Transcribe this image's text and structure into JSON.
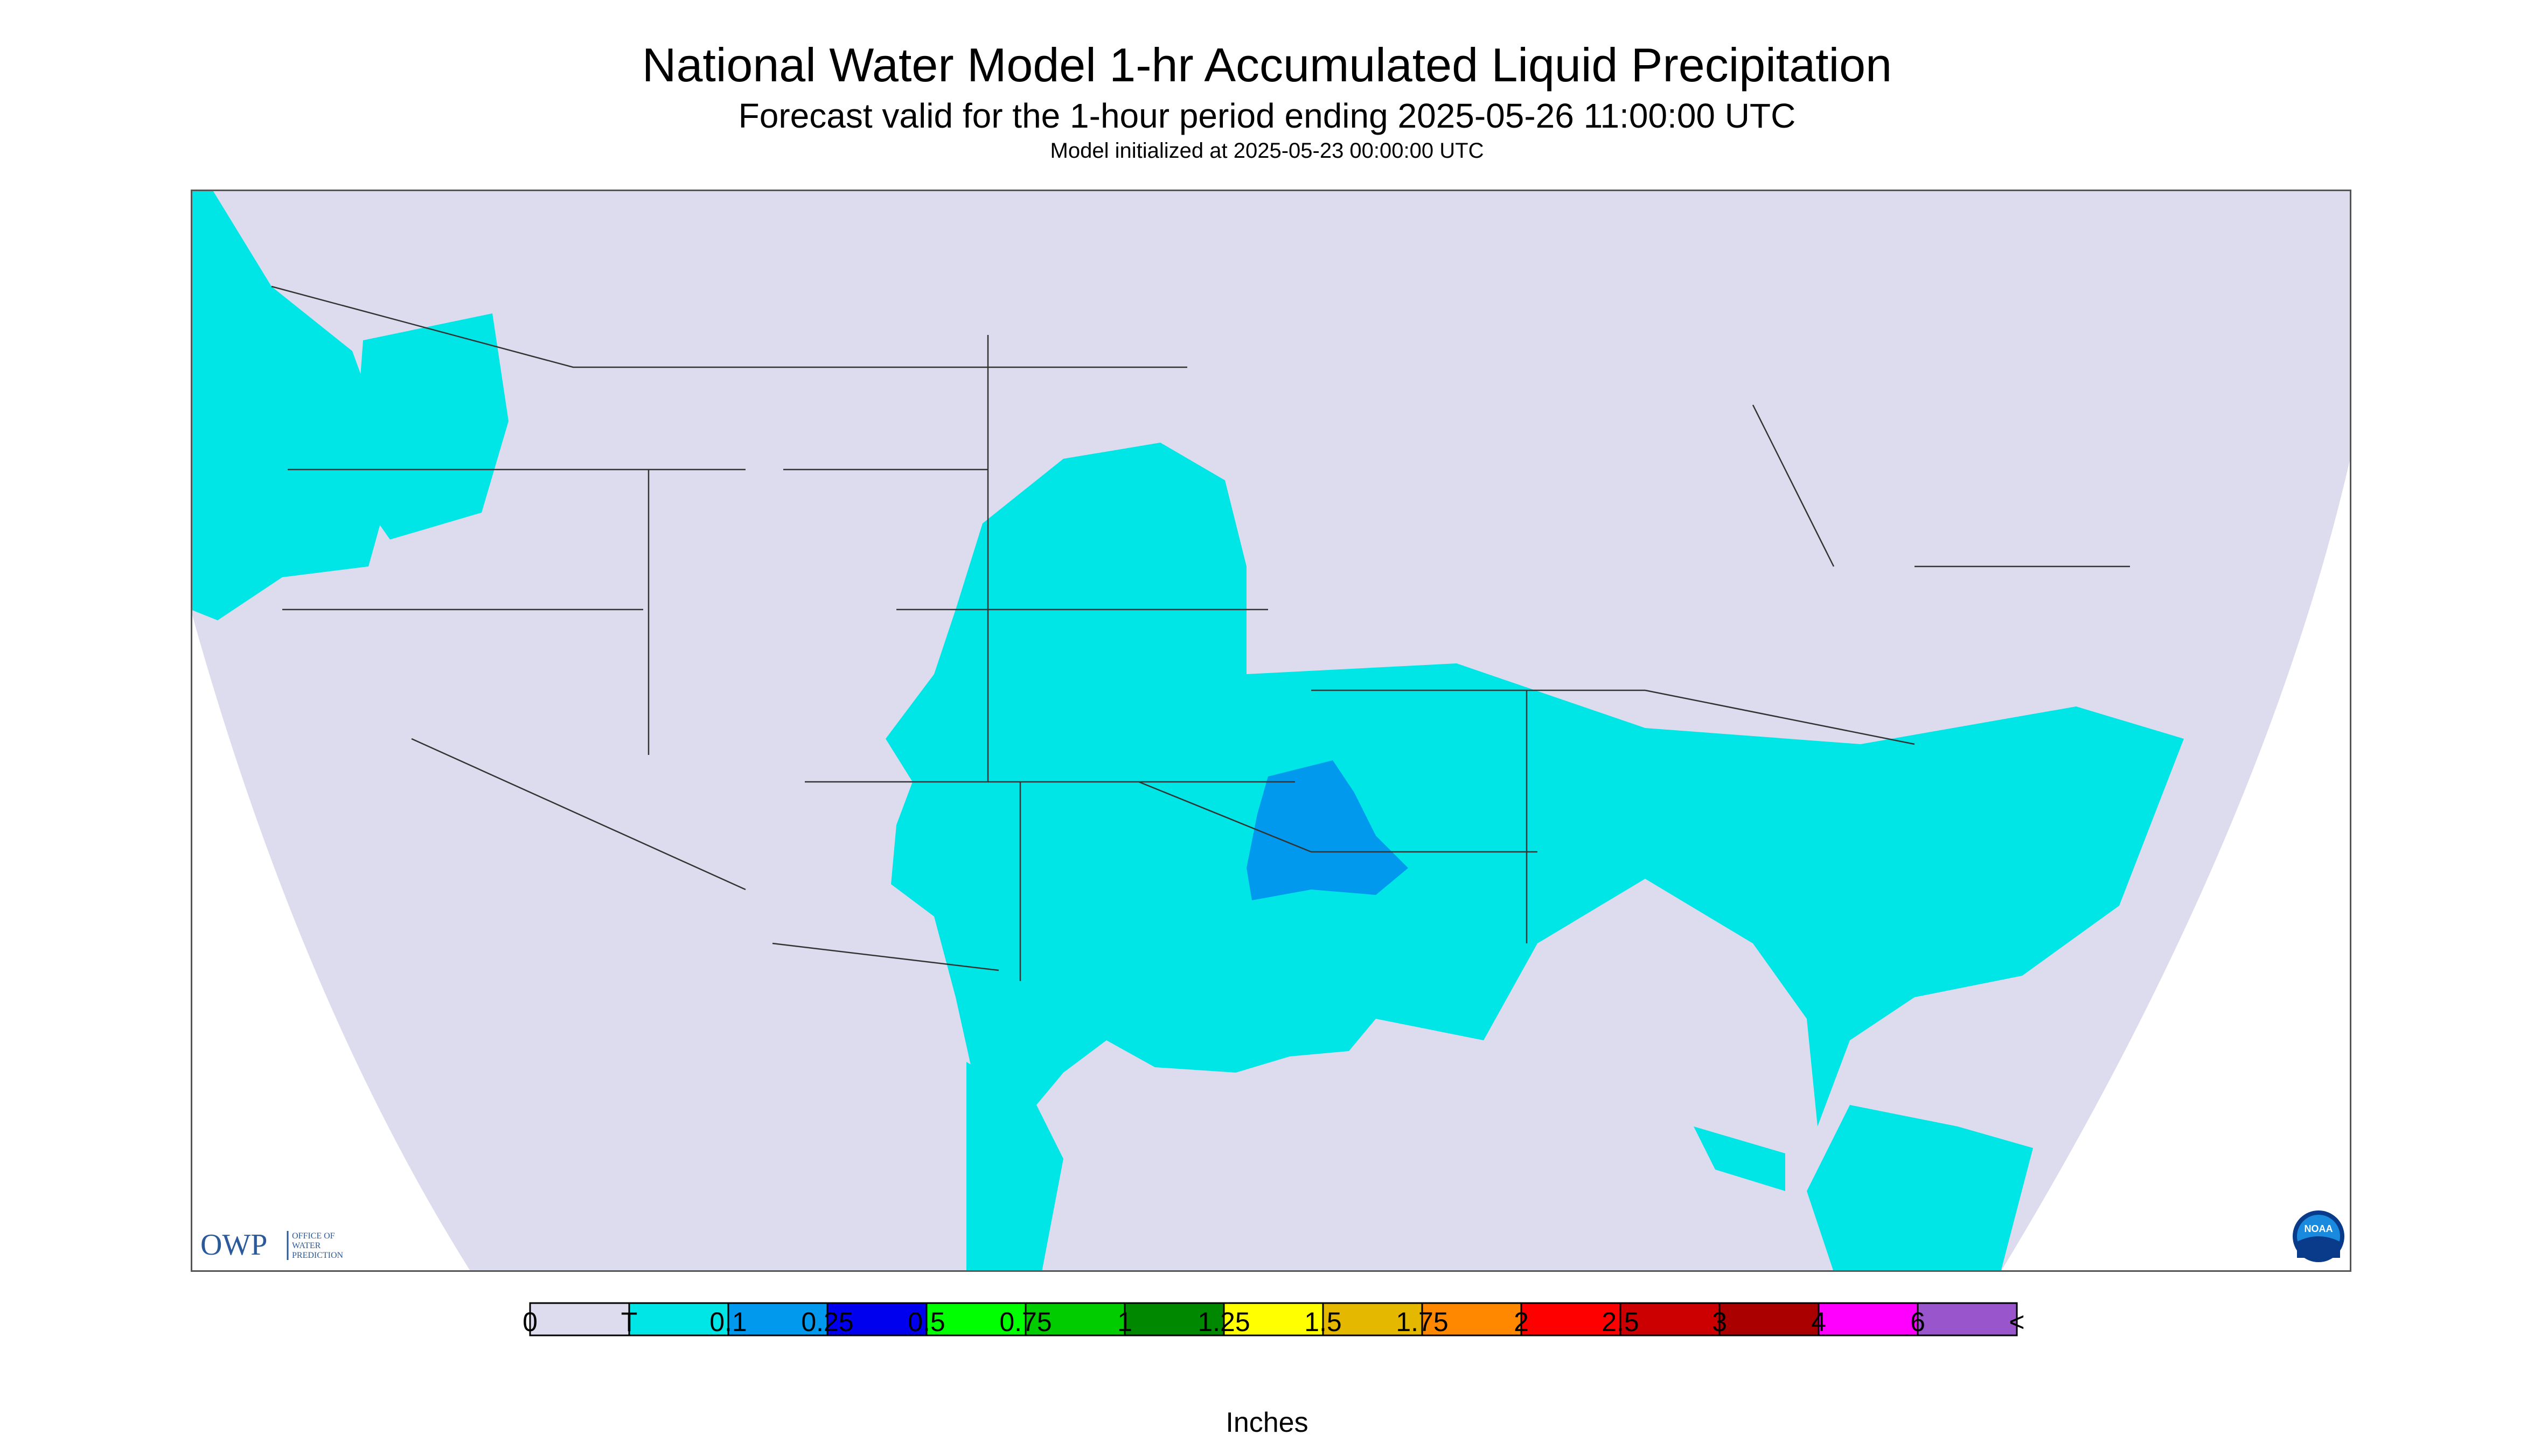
{
  "header": {
    "title": "National Water Model 1-hr Accumulated Liquid Precipitation",
    "subtitle": "Forecast valid for the 1-hour period ending 2025-05-26 11:00:00 UTC",
    "init": "Model initialized at 2025-05-23 00:00:00 UTC"
  },
  "colors": {
    "background": "#dcdcee",
    "trace": "#00e5e5",
    "light_blue": "#0099ee",
    "border": "#333333"
  },
  "legend": {
    "labels": [
      "0",
      "T",
      "0.1",
      "0.25",
      "0.5",
      "0.75",
      "1",
      "1.25",
      "1.5",
      "1.75",
      "2",
      "2.5",
      "3",
      "4",
      "6",
      "<"
    ],
    "colors": [
      "#dcdcee",
      "#00e5e5",
      "#0099ee",
      "#0000ee",
      "#00ff00",
      "#00cc00",
      "#008800",
      "#ffff00",
      "#e5b800",
      "#ff8800",
      "#ff0000",
      "#cc0000",
      "#aa0000",
      "#ff00ff",
      "#9955cc"
    ],
    "units": "Inches"
  },
  "logos": {
    "owp_text": "OWP",
    "owp_sub": [
      "OFFICE OF",
      "WATER",
      "PREDICTION"
    ],
    "noaa_text": "NOAA"
  }
}
